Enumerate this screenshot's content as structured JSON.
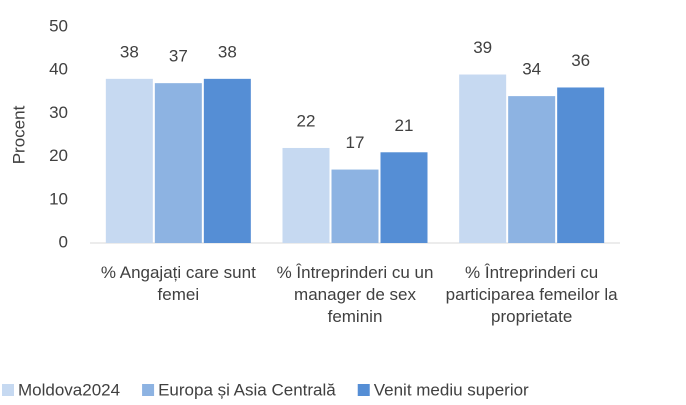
{
  "chart_data": {
    "type": "bar",
    "y_label": "Procent",
    "categories": [
      "% Angajați care sunt femei",
      "% Întreprinderi cu un manager de sex feminin",
      "% Întreprinderi cu participarea femeilor la proprietate"
    ],
    "series": [
      {
        "name": "Moldova2024",
        "color": "#c6d9f1",
        "values": [
          38,
          22,
          39
        ]
      },
      {
        "name": "Europa și Asia Centrală",
        "color": "#8db3e2",
        "values": [
          37,
          17,
          34
        ]
      },
      {
        "name": "Venit mediu superior",
        "color": "#558ed5",
        "values": [
          38,
          21,
          36
        ]
      }
    ],
    "ylim": [
      0,
      50
    ],
    "yticks": [
      0,
      10,
      20,
      30,
      40,
      50
    ],
    "grid": false,
    "legend": "bottom"
  }
}
